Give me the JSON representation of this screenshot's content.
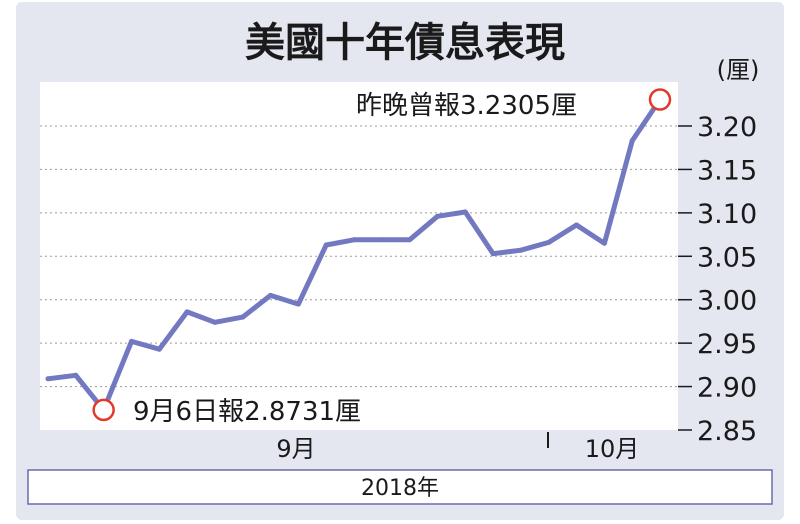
{
  "colors": {
    "frame_bg": "#e4e6f0",
    "plot_bg": "#ffffff",
    "line": "#7279c0",
    "marker": "#e23a2a",
    "grid": "#9a9a9a",
    "text": "#1a1a1a",
    "border": "#6a6ab0"
  },
  "chart_data": {
    "type": "line",
    "title": "美國十年債息表現",
    "unit_label": "(厘)",
    "y_ticks": [
      "3.20",
      "3.15",
      "3.10",
      "3.05",
      "3.00",
      "2.95",
      "2.90",
      "2.85"
    ],
    "ylim": [
      2.85,
      3.2
    ],
    "grid": true,
    "x_month_labels": [
      "9月",
      "10月"
    ],
    "year_label": "2018年",
    "series": [
      {
        "values": [
          2.909,
          2.913,
          2.8731,
          2.952,
          2.943,
          2.986,
          2.974,
          2.98,
          3.005,
          2.995,
          3.063,
          3.069,
          3.069,
          3.069,
          3.096,
          3.101,
          3.053,
          3.057,
          3.066,
          3.086,
          3.065,
          3.183,
          3.2305
        ]
      }
    ],
    "annotations": [
      {
        "text": "昨晚曾報3.2305厘",
        "index": 22,
        "value": 3.2305
      },
      {
        "text": "9月6日報2.8731厘",
        "index": 2,
        "value": 2.8731
      }
    ]
  }
}
